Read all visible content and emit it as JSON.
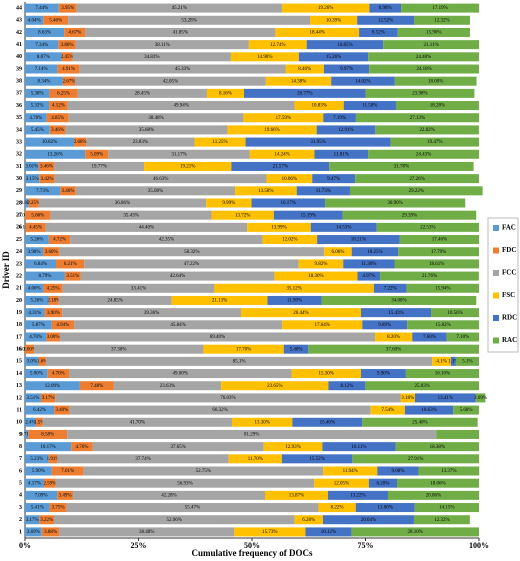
{
  "chart_data": {
    "type": "bar",
    "orientation": "horizontal",
    "stacked": true,
    "xlabel": "Cumulative frequency of DOCs",
    "ylabel": "Driver ID",
    "categories": [
      "1",
      "2",
      "3",
      "4",
      "5",
      "6",
      "7",
      "8",
      "9",
      "10",
      "11",
      "12",
      "13",
      "14",
      "15",
      "16",
      "17",
      "18",
      "19",
      "20",
      "21",
      "22",
      "23",
      "24",
      "25",
      "26",
      "27",
      "28",
      "29",
      "30",
      "31",
      "32",
      "33",
      "34",
      "35",
      "36",
      "37",
      "38",
      "39",
      "40",
      "41",
      "42",
      "43",
      "44"
    ],
    "xlim": [
      0,
      100
    ],
    "xticks": [
      {
        "value": 0,
        "label": "0%"
      },
      {
        "value": 25,
        "label": "25%"
      },
      {
        "value": 50,
        "label": "50%"
      },
      {
        "value": 75,
        "label": "75%"
      },
      {
        "value": 100,
        "label": "100%"
      }
    ],
    "grid": false,
    "legend": "right",
    "series": [
      {
        "name": "FAC",
        "color": "#5b9bd5",
        "values": [
          3.69,
          3.17,
          5.41,
          7.09,
          4.17,
          5.9,
          5.23,
          10.17,
          0.71,
          2.4,
          6.42,
          3.51,
          12.09,
          5.0,
          3.0,
          0.0,
          4.7,
          5.87,
          4.31,
          5.26,
          4.06,
          8.79,
          6.84,
          3.98,
          5.26,
          0.1,
          0.0,
          0.8,
          7.73,
          3.15,
          3.01,
          13.26,
          10.82,
          5.45,
          4.78,
          5.32,
          5.38,
          8.34,
          7.14,
          8.07,
          7.34,
          8.63,
          4.04,
          7.44
        ],
        "value_labels": [
          "3.69%",
          "3.17%",
          "5.41%",
          "7.09%",
          "4.17%",
          "5.90%",
          "5.23%",
          "10.17%",
          "0.71%",
          "2.4%",
          "6.42%",
          "3.51%",
          "12.09%",
          "5.00%",
          "3.0%",
          "0.00%",
          "4.70%",
          "5.87%",
          "4.31%",
          "5.26%",
          "4.06%",
          "8.79%",
          "6.84%",
          "3.98%",
          "5.26%",
          "0.10%",
          "0.00%",
          "0.80%",
          "7.73%",
          "3.15%",
          "3.01%",
          "13.26%",
          "10.82%",
          "5.45%",
          "4.78%",
          "5.32%",
          "5.38%",
          "8.34%",
          "7.14%",
          "8.07%",
          "7.34%",
          "8.63%",
          "4.04%",
          "7.44%"
        ]
      },
      {
        "name": "FDC",
        "color": "#ed7d31",
        "values": [
          3.88,
          3.22,
          3.75,
          3.49,
          2.59,
          7.01,
          1.91,
          4.76,
          8.58,
          1.5,
          3.4,
          3.17,
          7.48,
          4.7,
          1.6,
          2.0,
          3.0,
          4.94,
          3.9,
          2.18,
          4.25,
          3.51,
          6.21,
          3.6,
          4.72,
          4.45,
          5.66,
          2.25,
          3.46,
          3.42,
          3.46,
          5.09,
          2.68,
          3.46,
          4.85,
          4.12,
          6.25,
          2.67,
          4.91,
          2.45,
          3.86,
          4.67,
          5.46,
          3.95
        ],
        "value_labels": [
          "3.88%",
          "3.22%",
          "3.75%",
          "3.49%",
          "2.59%",
          "7.01%",
          "1.91%",
          "4.76%",
          "8.58%",
          "1.5%",
          "3.40%",
          "3.17%",
          "7.48%",
          "4.70%",
          "1.6%",
          "2.00%",
          "3.00%",
          "4.94%",
          "3.90%",
          "2.18%",
          "4.25%",
          "3.51%",
          "6.21%",
          "3.60%",
          "4.72%",
          "4.45%",
          "5.66%",
          "2.25%",
          "3.46%",
          "3.42%",
          "3.46%",
          "5.09%",
          "2.68%",
          "3.46%",
          "4.85%",
          "4.12%",
          "6.25%",
          "2.67%",
          "4.91%",
          "2.45%",
          "3.86%",
          "4.67%",
          "5.46%",
          "3.95%"
        ]
      },
      {
        "name": "FCC",
        "color": "#a5a5a5",
        "values": [
          38.48,
          52.96,
          55.47,
          42.28,
          56.93,
          52.75,
          37.74,
          37.65,
          81.29,
          41.7,
          66.32,
          76.03,
          23.63,
          49.0,
          85.1,
          37.3,
          69.4,
          45.84,
          39.36,
          24.85,
          33.41,
          42.64,
          47.22,
          58.32,
          42.35,
          44.4,
          35.43,
          36.86,
          35.08,
          46.63,
          19.77,
          31.17,
          23.83,
          35.68,
          38.48,
          49.94,
          28.45,
          42.05,
          45.33,
          34.83,
          38.11,
          41.85,
          53.28,
          45.21
        ],
        "value_labels": [
          "38.48%",
          "52.96%",
          "55.47%",
          "42.28%",
          "56.93%",
          "52.75%",
          "37.74%",
          "37.65%",
          "81.29%",
          "41.70%",
          "66.32%",
          "76.03%",
          "23.63%",
          "49.00%",
          "85.1%",
          "37.30%",
          "69.40%",
          "45.84%",
          "39.36%",
          "24.85%",
          "33.41%",
          "42.64%",
          "47.22%",
          "58.32%",
          "42.35%",
          "44.40%",
          "35.43%",
          "36.86%",
          "35.08%",
          "46.63%",
          "19.77%",
          "31.17%",
          "23.83%",
          "35.68%",
          "38.48%",
          "49.94%",
          "28.45%",
          "42.05%",
          "45.33%",
          "34.83%",
          "38.11%",
          "41.85%",
          "53.28%",
          "45.21%"
        ]
      },
      {
        "name": "FSC",
        "color": "#ffc000",
        "values": [
          15.73,
          6.28,
          8.22,
          13.87,
          12.05,
          11.94,
          11.7,
          12.93,
          0,
          13.3,
          7.54,
          3.18,
          23.65,
          15.3,
          4.1,
          17.7,
          8.2,
          17.64,
          26.44,
          21.13,
          35.12,
          18.3,
          9.82,
          6.06,
          12.02,
          13.99,
          13.72,
          9.99,
          13.58,
          10.06,
          19.21,
          14.24,
          11.25,
          19.66,
          17.59,
          10.83,
          8.16,
          14.38,
          8.46,
          14.98,
          12.74,
          18.44,
          10.39,
          19.26
        ],
        "value_labels": [
          "15.73%",
          "6.28%",
          "8.22%",
          "13.87%",
          "12.05%",
          "11.94%",
          "11.70%",
          "12.93%",
          null,
          "13.30%",
          "7.54%",
          "3.18%",
          "23.65%",
          "15.30%",
          "4.1%",
          "17.70%",
          "8.20%",
          "17.64%",
          "26.44%",
          "21.13%",
          "35.12%",
          "18.30%",
          "9.82%",
          "6.06%",
          "12.02%",
          "13.99%",
          "13.72%",
          "9.99%",
          "13.58%",
          "10.06%",
          "19.21%",
          "14.24%",
          "11.25%",
          "19.66%",
          "17.59%",
          "10.83%",
          "8.16%",
          "14.38%",
          "8.46%",
          "14.98%",
          "12.74%",
          "18.44%",
          "10.39%",
          "19.26%"
        ]
      },
      {
        "name": "RDC",
        "color": "#4472c4",
        "values": [
          10.12,
          20.04,
          13.0,
          13.22,
          6.2,
          9.08,
          15.52,
          16.11,
          0,
          15.4,
          10.63,
          13.41,
          8.12,
          9.9,
          1.1,
          5.4,
          7.6,
          9.89,
          15.43,
          11.9,
          7.22,
          4.97,
          11.3,
          10.25,
          18.21,
          14.53,
          15.19,
          16.17,
          11.73,
          9.47,
          21.57,
          11.81,
          31.95,
          12.91,
          7.19,
          11.5,
          26.77,
          14.02,
          9.97,
          15.26,
          16.85,
          8.52,
          12.52,
          6.98
        ],
        "value_labels": [
          "10.12%",
          "20.04%",
          "13.00%",
          "13.22%",
          "6.20%",
          "9.08%",
          "15.52%",
          "16.11%",
          null,
          "15.40%",
          "10.63%",
          "13.41%",
          "8.12%",
          "9.90%",
          "1.1%",
          "5.40%",
          "7.60%",
          "9.89%",
          "15.43%",
          "11.90%",
          "7.22%",
          "4.97%",
          "11.30%",
          "10.25%",
          "18.21%",
          "14.53%",
          "15.19%",
          "16.17%",
          "11.73%",
          "9.47%",
          "21.57%",
          "11.81%",
          "31.95%",
          "12.91%",
          "7.19%",
          "11.50%",
          "26.77%",
          "14.02%",
          "9.97%",
          "15.26%",
          "16.85%",
          "8.52%",
          "12.52%",
          "6.98%"
        ]
      },
      {
        "name": "RAC",
        "color": "#70ad47",
        "values": [
          28.1,
          12.32,
          14.15,
          20.06,
          18.06,
          13.37,
          27.91,
          18.38,
          9.42,
          25.4,
          5.68,
          2.09,
          25.03,
          16.1,
          5.1,
          37.6,
          7.1,
          15.82,
          10.56,
          34.08,
          15.94,
          21.76,
          18.61,
          17.79,
          17.46,
          22.53,
          29.39,
          30.9,
          29.22,
          27.26,
          31.78,
          24.43,
          19.47,
          22.82,
          27.13,
          18.28,
          23.98,
          18.0,
          24.18,
          24.4,
          21.11,
          15.9,
          12.32,
          17.19
        ],
        "value_labels": [
          "28.10%",
          "12.32%",
          "14.15%",
          "20.06%",
          "18.06%",
          "13.37%",
          "27.91%",
          "18.38%",
          null,
          "25.40%",
          "5.68%",
          "2.09%",
          "25.03%",
          "16.10%",
          "5.1%",
          "37.60%",
          "7.10%",
          "15.82%",
          "10.56%",
          "34.08%",
          "15.94%",
          "21.76%",
          "18.61%",
          "17.79%",
          "17.46%",
          "22.53%",
          "29.39%",
          "30.90%",
          "29.22%",
          "27.26%",
          "31.78%",
          "24.43%",
          "19.47%",
          "22.82%",
          "27.13%",
          "18.28%",
          "23.98%",
          "18.00%",
          "24.18%",
          "24.40%",
          "21.11%",
          "15.90%",
          "12.32%",
          "17.19%"
        ]
      }
    ]
  }
}
